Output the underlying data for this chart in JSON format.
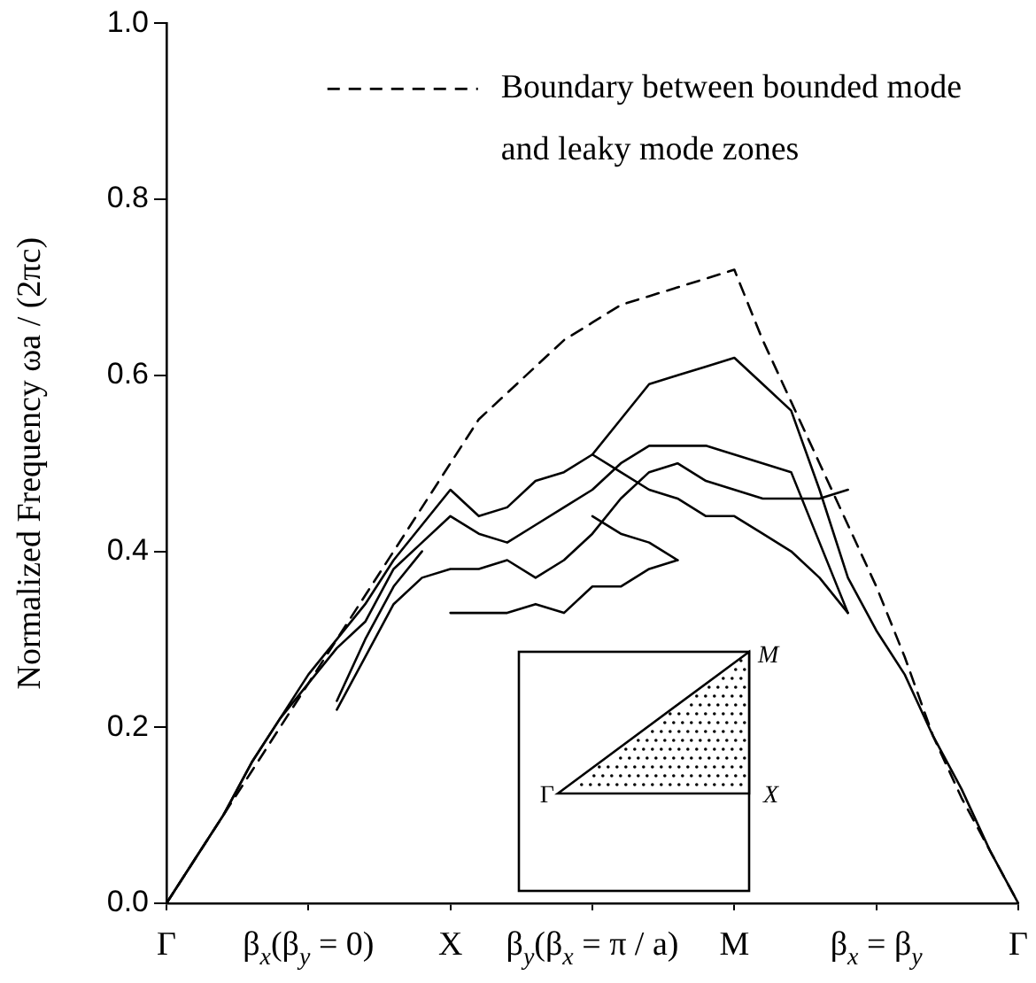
{
  "chart_data": {
    "type": "line",
    "ylabel": "Normalized Frequency ωa / (2πc)",
    "categories": [
      "Γ",
      null,
      null,
      null,
      null,
      "β$_{x}$(β$_{y}$ = 0)",
      null,
      null,
      null,
      null,
      "X",
      null,
      null,
      null,
      null,
      "β$_{y}$(β$_{x}$ = π / a)",
      null,
      null,
      null,
      null,
      "M",
      null,
      null,
      null,
      null,
      "β$_{x}$ = β$_{y}$",
      null,
      null,
      null,
      null,
      "Γ"
    ],
    "ylim": [
      0,
      1
    ],
    "yticks": [
      {
        "value": 0,
        "label": "0.0"
      },
      {
        "value": 0.2,
        "label": "0.2"
      },
      {
        "value": 0.4,
        "label": "0.4"
      },
      {
        "value": 0.6,
        "label": "0.6"
      },
      {
        "value": 0.8,
        "label": "0.8"
      },
      {
        "value": 1,
        "label": "1.0"
      }
    ],
    "marker": "none",
    "legend": "top right",
    "annotations": [
      "Γ",
      "M",
      "X"
    ],
    "series": [
      {
        "name": "Boundary between bounded mode and leaky mode zones",
        "color": "#000000",
        "line_style": "dashed",
        "values": [
          0,
          0.05,
          0.1,
          0.15,
          0.2,
          0.25,
          0.3,
          0.35,
          0.4,
          0.45,
          0.5,
          0.55,
          0.58,
          0.61,
          0.64,
          0.66,
          0.68,
          0.69,
          0.7,
          0.71,
          0.72,
          0.64,
          0.57,
          0.5,
          0.43,
          0.36,
          0.28,
          0.19,
          0.12,
          0.06,
          0
        ]
      },
      {
        "color": "#000000",
        "values": [
          0,
          0.05,
          0.1,
          0.16,
          0.21,
          0.26,
          0.3,
          0.34,
          0.39,
          0.43,
          0.47,
          0.44,
          0.45,
          0.48,
          0.49,
          0.51,
          0.55,
          0.59,
          0.6,
          0.61,
          0.62,
          0.59,
          0.56,
          0.47,
          0.37,
          0.31,
          0.26,
          0.19,
          0.13,
          0.06,
          0
        ]
      },
      {
        "color": "#000000",
        "values": [
          0,
          0.05,
          0.1,
          0.16,
          0.21,
          0.25,
          0.29,
          0.32,
          0.38,
          0.41,
          0.44,
          0.42,
          0.41,
          0.43,
          0.45,
          0.47,
          0.5,
          0.52,
          0.52,
          0.52,
          0.51,
          0.5,
          0.49,
          0.41,
          0.33,
          null,
          null,
          null,
          null,
          null,
          null
        ]
      },
      {
        "color": "#000000",
        "values": [
          null,
          null,
          null,
          null,
          null,
          null,
          0.22,
          0.28,
          0.34,
          0.37,
          0.38,
          0.38,
          0.39,
          0.37,
          0.39,
          0.42,
          0.46,
          0.49,
          0.5,
          0.48,
          0.47,
          0.46,
          0.46,
          0.46,
          0.47,
          null,
          null,
          null,
          null,
          null,
          null
        ]
      },
      {
        "color": "#000000",
        "values": [
          null,
          null,
          null,
          null,
          null,
          null,
          0.23,
          0.3,
          0.36,
          0.4,
          null,
          null,
          null,
          null,
          null,
          null,
          null,
          null,
          null,
          null,
          null,
          null,
          null,
          null,
          null,
          null,
          null,
          null,
          null,
          null,
          null
        ]
      },
      {
        "color": "#000000",
        "values": [
          null,
          null,
          null,
          null,
          null,
          null,
          null,
          null,
          null,
          null,
          0.33,
          0.33,
          0.33,
          0.34,
          0.33,
          0.36,
          0.36,
          0.38,
          0.39,
          null,
          null,
          null,
          null,
          null,
          null,
          null,
          null,
          null,
          null,
          null,
          null
        ]
      },
      {
        "color": "#000000",
        "values": [
          null,
          null,
          null,
          null,
          null,
          null,
          null,
          null,
          null,
          null,
          null,
          null,
          null,
          null,
          null,
          0.44,
          0.42,
          0.41,
          0.39,
          null,
          null,
          null,
          null,
          null,
          null,
          null,
          null,
          null,
          null,
          null,
          null
        ]
      },
      {
        "color": "#000000",
        "values": [
          null,
          null,
          null,
          null,
          null,
          null,
          null,
          null,
          null,
          null,
          null,
          null,
          null,
          null,
          null,
          0.51,
          0.49,
          0.47,
          0.46,
          0.44,
          0.44,
          0.42,
          0.4,
          0.37,
          0.33,
          null,
          null,
          null,
          null,
          null,
          null
        ]
      }
    ]
  }
}
